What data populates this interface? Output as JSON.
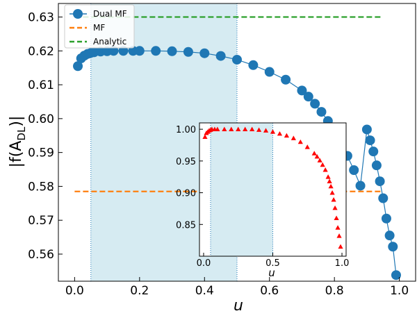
{
  "chart_data": [
    {
      "type": "scatter",
      "panel": "main",
      "xlabel": "u",
      "ylabel_parts": {
        "pre": "|f(A",
        "sub": "DL",
        "post": ")|"
      },
      "xlim": [
        -0.05,
        1.05
      ],
      "ylim": [
        0.552,
        0.634
      ],
      "xticks": [
        0.0,
        0.2,
        0.4,
        0.6,
        0.8,
        1.0
      ],
      "xtick_labels": [
        "0.0",
        "0.2",
        "0.4",
        "0.6",
        "0.8",
        "1.0"
      ],
      "yticks": [
        0.56,
        0.57,
        0.58,
        0.59,
        0.6,
        0.61,
        0.62,
        0.63
      ],
      "ytick_labels": [
        "0.56",
        "0.57",
        "0.58",
        "0.59",
        "0.60",
        "0.61",
        "0.62",
        "0.63"
      ],
      "shaded_region": {
        "x": [
          0.05,
          0.5
        ],
        "color": "#add8e6"
      },
      "legend": {
        "placement": "top-left"
      },
      "series": [
        {
          "name": "Dual MF",
          "style": "markers-line",
          "color": "#1f77b4",
          "x": [
            0.01,
            0.02,
            0.03,
            0.04,
            0.05,
            0.06,
            0.08,
            0.1,
            0.12,
            0.15,
            0.18,
            0.2,
            0.25,
            0.3,
            0.35,
            0.4,
            0.45,
            0.5,
            0.55,
            0.6,
            0.65,
            0.7,
            0.72,
            0.74,
            0.76,
            0.78,
            0.8,
            0.82,
            0.84,
            0.86,
            0.88,
            0.9,
            0.91,
            0.92,
            0.93,
            0.94,
            0.95,
            0.96,
            0.97,
            0.98,
            0.99
          ],
          "y": [
            0.6155,
            0.6178,
            0.6186,
            0.6191,
            0.6194,
            0.6196,
            0.6198,
            0.6199,
            0.62,
            0.62,
            0.62,
            0.62,
            0.62,
            0.6199,
            0.6197,
            0.6193,
            0.6185,
            0.6174,
            0.6158,
            0.6138,
            0.6115,
            0.6083,
            0.6065,
            0.6044,
            0.602,
            0.5993,
            0.5962,
            0.5928,
            0.589,
            0.5848,
            0.5802,
            0.5968,
            0.5936,
            0.5903,
            0.5862,
            0.5815,
            0.5765,
            0.5705,
            0.5655,
            0.5622,
            0.5538
          ]
        },
        {
          "name": "MF",
          "style": "dashed",
          "color": "#ff7f0e",
          "x": [
            0.0,
            0.95
          ],
          "y": [
            0.5785,
            0.5785
          ]
        },
        {
          "name": "Analytic",
          "style": "dashed",
          "color": "#2ca02c",
          "x": [
            0.0,
            0.95
          ],
          "y": [
            0.63,
            0.63
          ]
        }
      ]
    },
    {
      "type": "scatter",
      "panel": "inset",
      "xlabel": "u",
      "xlim": [
        -0.03,
        1.03
      ],
      "ylim": [
        0.8,
        1.01
      ],
      "xticks": [
        0.0,
        0.5,
        1.0
      ],
      "xtick_labels": [
        "0.0",
        "0.5",
        "1.0"
      ],
      "yticks": [
        0.85,
        0.9,
        0.95,
        1.0
      ],
      "ytick_labels": [
        "0.85",
        "0.90",
        "0.95",
        "1.00"
      ],
      "shaded_region": {
        "x": [
          0.05,
          0.5
        ],
        "color": "#add8e6"
      },
      "series": [
        {
          "name": "",
          "marker": "triangle",
          "color": "#ff0000",
          "x": [
            0.01,
            0.02,
            0.03,
            0.04,
            0.05,
            0.06,
            0.08,
            0.1,
            0.15,
            0.2,
            0.25,
            0.3,
            0.35,
            0.4,
            0.45,
            0.5,
            0.55,
            0.6,
            0.65,
            0.7,
            0.75,
            0.8,
            0.82,
            0.84,
            0.86,
            0.88,
            0.9,
            0.91,
            0.92,
            0.93,
            0.94,
            0.95,
            0.96,
            0.97,
            0.98,
            0.99
          ],
          "y": [
            0.988,
            0.994,
            0.996,
            0.998,
            0.999,
            1.0,
            1.0,
            1.0,
            1.0,
            1.0,
            1.0,
            1.0,
            1.0,
            0.999,
            0.998,
            0.996,
            0.993,
            0.99,
            0.986,
            0.98,
            0.972,
            0.962,
            0.957,
            0.951,
            0.944,
            0.936,
            0.925,
            0.918,
            0.91,
            0.9,
            0.889,
            0.876,
            0.86,
            0.845,
            0.832,
            0.815
          ]
        }
      ]
    }
  ]
}
